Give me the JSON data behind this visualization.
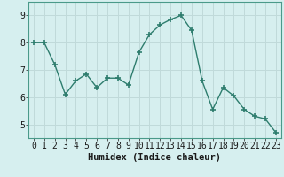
{
  "x": [
    0,
    1,
    2,
    3,
    4,
    5,
    6,
    7,
    8,
    9,
    10,
    11,
    12,
    13,
    14,
    15,
    16,
    17,
    18,
    19,
    20,
    21,
    22,
    23
  ],
  "y": [
    8.0,
    8.0,
    7.2,
    6.1,
    6.6,
    6.85,
    6.35,
    6.7,
    6.7,
    6.45,
    7.65,
    8.3,
    8.65,
    8.85,
    9.0,
    8.45,
    6.6,
    5.55,
    6.35,
    6.05,
    5.55,
    5.3,
    5.2,
    4.7
  ],
  "line_color": "#2e7d6e",
  "marker": "+",
  "marker_size": 4,
  "linewidth": 1.0,
  "bg_color": "#d6efef",
  "grid_color": "#c0dada",
  "xlabel": "Humidex (Indice chaleur)",
  "xlim": [
    -0.5,
    23.5
  ],
  "ylim": [
    4.5,
    9.5
  ],
  "yticks": [
    5,
    6,
    7,
    8,
    9
  ],
  "xticks": [
    0,
    1,
    2,
    3,
    4,
    5,
    6,
    7,
    8,
    9,
    10,
    11,
    12,
    13,
    14,
    15,
    16,
    17,
    18,
    19,
    20,
    21,
    22,
    23
  ],
  "xlabel_fontsize": 7.5,
  "tick_fontsize": 7
}
